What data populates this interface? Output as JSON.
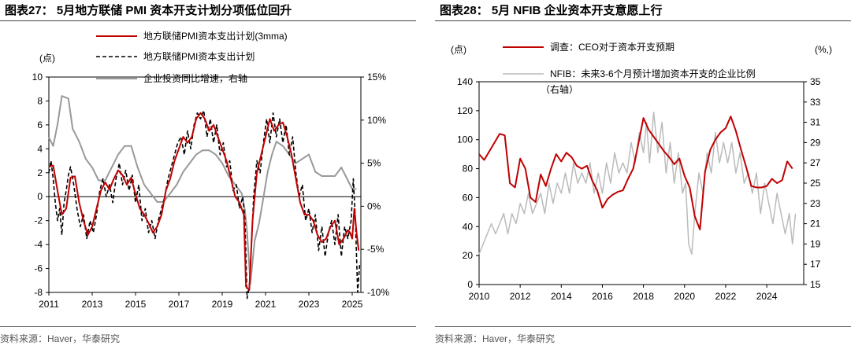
{
  "left": {
    "title": "图表27： 5月地方联储 PMI 资本开支计划分项低位回升",
    "source": "资料来源：Haver，华泰研究",
    "chart_data": {
      "type": "line",
      "unit_left": "(点)",
      "yleft_ticks": [
        "10",
        "8",
        "6",
        "4",
        "2",
        "0",
        "-2",
        "-4",
        "-6",
        "-8"
      ],
      "yright_ticks": [
        "15%",
        "10%",
        "5%",
        "0%",
        "-5%",
        "-10%"
      ],
      "x_ticks": [
        "2011",
        "2013",
        "2015",
        "2017",
        "2019",
        "2021",
        "2023",
        "2025"
      ],
      "ylim_left": [
        -8,
        10
      ],
      "ylim_right": [
        -10,
        15
      ],
      "xlim": [
        2011,
        2025.4
      ],
      "legend": [
        {
          "label": "地方联储PMI资本支出计划(3mma)",
          "color": "#c00000",
          "style": "solid"
        },
        {
          "label": "地方联储PMI资本支出计划",
          "color": "#000000",
          "style": "dashed"
        },
        {
          "label": "企业投资同比增速，右轴",
          "color": "#999999",
          "style": "solid"
        }
      ],
      "series": [
        {
          "name": "地方联储PMI资本支出计划(3mma)",
          "axis": "left",
          "x": [
            2011.0,
            2011.2,
            2011.4,
            2011.6,
            2011.8,
            2012.0,
            2012.2,
            2012.4,
            2012.6,
            2012.8,
            2013.0,
            2013.2,
            2013.4,
            2013.6,
            2013.8,
            2014.0,
            2014.2,
            2014.4,
            2014.6,
            2014.8,
            2015.0,
            2015.2,
            2015.4,
            2015.6,
            2015.8,
            2016.0,
            2016.2,
            2016.4,
            2016.6,
            2016.8,
            2017.0,
            2017.2,
            2017.4,
            2017.6,
            2017.8,
            2018.0,
            2018.2,
            2018.4,
            2018.6,
            2018.8,
            2019.0,
            2019.2,
            2019.4,
            2019.6,
            2019.8,
            2020.0,
            2020.1,
            2020.25,
            2020.4,
            2020.6,
            2020.8,
            2021.0,
            2021.2,
            2021.4,
            2021.6,
            2021.8,
            2022.0,
            2022.2,
            2022.4,
            2022.6,
            2022.8,
            2023.0,
            2023.2,
            2023.4,
            2023.6,
            2023.8,
            2024.0,
            2024.2,
            2024.4,
            2024.6,
            2024.8,
            2024.9,
            2025.0,
            2025.1,
            2025.2,
            2025.3
          ],
          "values": [
            2.5,
            2.6,
            0.5,
            -1.5,
            -1.0,
            1.6,
            1.7,
            -0.5,
            -2.0,
            -3.2,
            -2.5,
            -1.0,
            0.5,
            1.2,
            0.6,
            1.5,
            2.2,
            1.8,
            1.0,
            1.6,
            0.2,
            -1.0,
            -1.5,
            -2.2,
            -3.0,
            -2.5,
            -1.5,
            0.5,
            1.5,
            3.0,
            4.0,
            5.0,
            4.5,
            5.0,
            6.5,
            7.0,
            6.5,
            5.5,
            6.0,
            5.0,
            4.0,
            3.0,
            1.5,
            0.0,
            -0.5,
            -1.5,
            -7.5,
            -7.8,
            -2.0,
            2.0,
            3.5,
            5.0,
            6.5,
            5.5,
            6.0,
            6.2,
            5.0,
            3.5,
            1.5,
            -0.5,
            -1.5,
            -1.5,
            -2.0,
            -3.2,
            -3.8,
            -3.5,
            -2.5,
            -2.0,
            -4.0,
            -3.5,
            -2.8,
            -3.0,
            -3.5,
            -1.0,
            -3.0,
            -4.5
          ]
        },
        {
          "name": "地方联储PMI资本支出计划",
          "axis": "left",
          "x": [
            2011.0,
            2011.1,
            2011.2,
            2011.3,
            2011.4,
            2011.5,
            2011.6,
            2011.7,
            2011.8,
            2011.9,
            2012.0,
            2012.15,
            2012.3,
            2012.45,
            2012.6,
            2012.75,
            2012.9,
            2013.05,
            2013.2,
            2013.35,
            2013.5,
            2013.65,
            2013.8,
            2013.95,
            2014.1,
            2014.25,
            2014.4,
            2014.55,
            2014.7,
            2014.85,
            2015.0,
            2015.15,
            2015.3,
            2015.45,
            2015.6,
            2015.75,
            2015.9,
            2016.05,
            2016.2,
            2016.35,
            2016.5,
            2016.65,
            2016.8,
            2016.95,
            2017.1,
            2017.25,
            2017.4,
            2017.55,
            2017.7,
            2017.85,
            2018.0,
            2018.15,
            2018.3,
            2018.45,
            2018.6,
            2018.75,
            2018.9,
            2019.05,
            2019.2,
            2019.35,
            2019.5,
            2019.65,
            2019.8,
            2019.95,
            2020.05,
            2020.15,
            2020.25,
            2020.35,
            2020.45,
            2020.6,
            2020.75,
            2020.9,
            2021.05,
            2021.2,
            2021.35,
            2021.5,
            2021.65,
            2021.8,
            2021.95,
            2022.1,
            2022.25,
            2022.4,
            2022.55,
            2022.7,
            2022.85,
            2023.0,
            2023.15,
            2023.3,
            2023.45,
            2023.6,
            2023.75,
            2023.9,
            2024.05,
            2024.2,
            2024.35,
            2024.5,
            2024.65,
            2024.8,
            2024.95,
            2025.05,
            2025.15,
            2025.25,
            2025.35
          ],
          "values": [
            2.0,
            3.0,
            1.5,
            -0.5,
            -2.0,
            -1.0,
            -3.2,
            -0.5,
            0.5,
            1.8,
            2.5,
            1.0,
            -1.0,
            -2.5,
            -1.5,
            -3.5,
            -2.0,
            -3.0,
            -1.5,
            0.5,
            1.5,
            0.0,
            1.0,
            -0.5,
            1.5,
            2.8,
            1.0,
            2.2,
            0.5,
            1.8,
            -0.5,
            1.0,
            -2.0,
            -1.0,
            -3.0,
            -2.0,
            -3.5,
            -2.0,
            -1.0,
            0.0,
            1.5,
            2.5,
            3.5,
            4.5,
            5.0,
            3.5,
            5.5,
            4.0,
            6.0,
            7.0,
            6.5,
            7.2,
            5.0,
            6.5,
            4.5,
            6.0,
            3.5,
            4.5,
            2.5,
            3.0,
            0.5,
            1.0,
            -1.0,
            0.0,
            -2.0,
            -8.5,
            -7.5,
            -4.0,
            0.0,
            3.0,
            2.0,
            4.5,
            6.5,
            4.5,
            7.0,
            5.0,
            6.5,
            4.5,
            6.0,
            3.5,
            5.0,
            2.0,
            0.0,
            1.0,
            -2.0,
            -1.0,
            -3.0,
            -1.5,
            -4.5,
            -2.5,
            -5.0,
            -3.0,
            -2.0,
            -4.0,
            -1.5,
            -5.0,
            -2.5,
            -3.5,
            -2.0,
            1.5,
            -2.0,
            -8.0,
            -5.5
          ]
        },
        {
          "name": "企业投资同比增速，右轴",
          "axis": "right",
          "x": [
            2011.0,
            2011.2,
            2011.4,
            2011.6,
            2011.9,
            2012.1,
            2012.4,
            2012.7,
            2013.0,
            2013.3,
            2013.6,
            2013.9,
            2014.2,
            2014.5,
            2014.8,
            2015.1,
            2015.4,
            2015.7,
            2016.0,
            2016.3,
            2016.6,
            2016.9,
            2017.2,
            2017.5,
            2017.8,
            2018.1,
            2018.4,
            2018.7,
            2019.0,
            2019.3,
            2019.6,
            2019.9,
            2020.05,
            2020.15,
            2020.3,
            2020.5,
            2020.7,
            2020.9,
            2021.1,
            2021.3,
            2021.5,
            2021.8,
            2022.1,
            2022.4,
            2022.7,
            2023.0,
            2023.3,
            2023.6,
            2023.9,
            2024.2,
            2024.5,
            2024.8,
            2025.0,
            2025.2
          ],
          "values": [
            8.0,
            7.0,
            9.5,
            12.8,
            12.5,
            9.0,
            7.5,
            5.5,
            4.5,
            3.0,
            3.0,
            4.5,
            6.0,
            7.0,
            7.0,
            4.5,
            2.5,
            1.5,
            0.5,
            0.5,
            1.5,
            2.5,
            4.0,
            5.0,
            6.0,
            6.5,
            6.5,
            6.0,
            5.0,
            3.5,
            2.5,
            1.5,
            -0.5,
            -3.0,
            -9.0,
            -4.0,
            -2.0,
            1.0,
            4.0,
            6.0,
            7.5,
            7.0,
            6.0,
            5.0,
            5.5,
            6.0,
            4.0,
            3.5,
            3.5,
            3.5,
            4.5,
            3.0,
            2.0,
            2.0
          ]
        }
      ]
    }
  },
  "right": {
    "title": "图表28： 5月 NFIB 企业资本开支意愿上行",
    "source": "资料来源：Haver，华泰研究",
    "chart_data": {
      "type": "line",
      "unit_left": "(点)",
      "unit_right": "(%,)",
      "yleft_ticks": [
        "140",
        "120",
        "100",
        "80",
        "60",
        "40",
        "20",
        "0"
      ],
      "yright_ticks": [
        "35",
        "33",
        "31",
        "29",
        "27",
        "25",
        "23",
        "21",
        "19",
        "17",
        "15"
      ],
      "x_ticks": [
        "2010",
        "2012",
        "2014",
        "2016",
        "2018",
        "2020",
        "2022",
        "2024"
      ],
      "ylim_left": [
        0,
        140
      ],
      "ylim_right": [
        15,
        35
      ],
      "xlim": [
        2010,
        2025.8
      ],
      "legend": [
        {
          "label": "调查：CEO对于资本开支预期",
          "color": "#c00000",
          "style": "solid"
        },
        {
          "label": "NFIB：未来3-6个月预计增加资本开支的企业比例",
          "color": "#bbbbbb",
          "style": "solid"
        },
        {
          "label": "（右轴）",
          "color": "",
          "style": ""
        }
      ],
      "series": [
        {
          "name": "调查：CEO对于资本开支预期",
          "axis": "left",
          "x": [
            2010.0,
            2010.25,
            2010.5,
            2010.75,
            2011.0,
            2011.25,
            2011.5,
            2011.75,
            2012.0,
            2012.25,
            2012.5,
            2012.75,
            2013.0,
            2013.25,
            2013.5,
            2013.75,
            2014.0,
            2014.25,
            2014.5,
            2014.75,
            2015.0,
            2015.25,
            2015.5,
            2015.75,
            2016.0,
            2016.25,
            2016.5,
            2016.75,
            2017.0,
            2017.25,
            2017.5,
            2017.75,
            2018.0,
            2018.25,
            2018.5,
            2018.75,
            2019.0,
            2019.25,
            2019.5,
            2019.75,
            2020.0,
            2020.25,
            2020.5,
            2020.75,
            2021.0,
            2021.25,
            2021.5,
            2021.75,
            2022.0,
            2022.25,
            2022.5,
            2022.75,
            2023.0,
            2023.25,
            2023.5,
            2023.75,
            2024.0,
            2024.25,
            2024.5,
            2024.75,
            2025.0,
            2025.25
          ],
          "values": [
            90,
            86,
            92,
            98,
            104,
            103,
            70,
            67,
            87,
            80,
            60,
            57,
            76,
            68,
            80,
            90,
            85,
            91,
            88,
            82,
            80,
            82,
            72,
            65,
            53,
            59,
            62,
            64,
            65,
            73,
            80,
            97,
            115,
            107,
            102,
            97,
            92,
            88,
            83,
            87,
            75,
            67,
            47,
            38,
            78,
            93,
            100,
            105,
            108,
            116,
            106,
            93,
            81,
            68,
            67,
            67,
            68,
            73,
            70,
            72,
            85,
            80
          ]
        },
        {
          "name": "NFIB：未来3-6个月预计增加资本开支的企业比例",
          "axis": "right",
          "x": [
            2010.0,
            2010.2,
            2010.4,
            2010.6,
            2010.8,
            2011.0,
            2011.2,
            2011.4,
            2011.6,
            2011.8,
            2012.0,
            2012.2,
            2012.4,
            2012.6,
            2012.8,
            2013.0,
            2013.2,
            2013.4,
            2013.6,
            2013.8,
            2014.0,
            2014.2,
            2014.4,
            2014.6,
            2014.8,
            2015.0,
            2015.2,
            2015.4,
            2015.6,
            2015.8,
            2016.0,
            2016.2,
            2016.4,
            2016.6,
            2016.8,
            2017.0,
            2017.2,
            2017.4,
            2017.6,
            2017.8,
            2018.0,
            2018.15,
            2018.3,
            2018.5,
            2018.7,
            2018.9,
            2019.1,
            2019.3,
            2019.5,
            2019.7,
            2019.9,
            2020.05,
            2020.2,
            2020.35,
            2020.5,
            2020.7,
            2020.9,
            2021.1,
            2021.3,
            2021.5,
            2021.7,
            2021.9,
            2022.1,
            2022.3,
            2022.5,
            2022.7,
            2022.9,
            2023.1,
            2023.3,
            2023.5,
            2023.7,
            2023.9,
            2024.1,
            2024.3,
            2024.5,
            2024.7,
            2024.9,
            2025.1,
            2025.25,
            2025.4
          ],
          "values": [
            18,
            19,
            20,
            21,
            20,
            21,
            22,
            20,
            22,
            21,
            23,
            22,
            24,
            22,
            23,
            24,
            22,
            25,
            23,
            25,
            24,
            26,
            24,
            27,
            25,
            26,
            25,
            27,
            24,
            26,
            24,
            27,
            25,
            28,
            26,
            27,
            26,
            29,
            27,
            30,
            28,
            31,
            27,
            32,
            28,
            31,
            26,
            29,
            25,
            28,
            24,
            25,
            19,
            18,
            22,
            26,
            24,
            28,
            26,
            30,
            27,
            29,
            27,
            29,
            26,
            28,
            25,
            26,
            24,
            26,
            22,
            25,
            23,
            21,
            24,
            22,
            20,
            22,
            19,
            22
          ]
        }
      ]
    }
  }
}
